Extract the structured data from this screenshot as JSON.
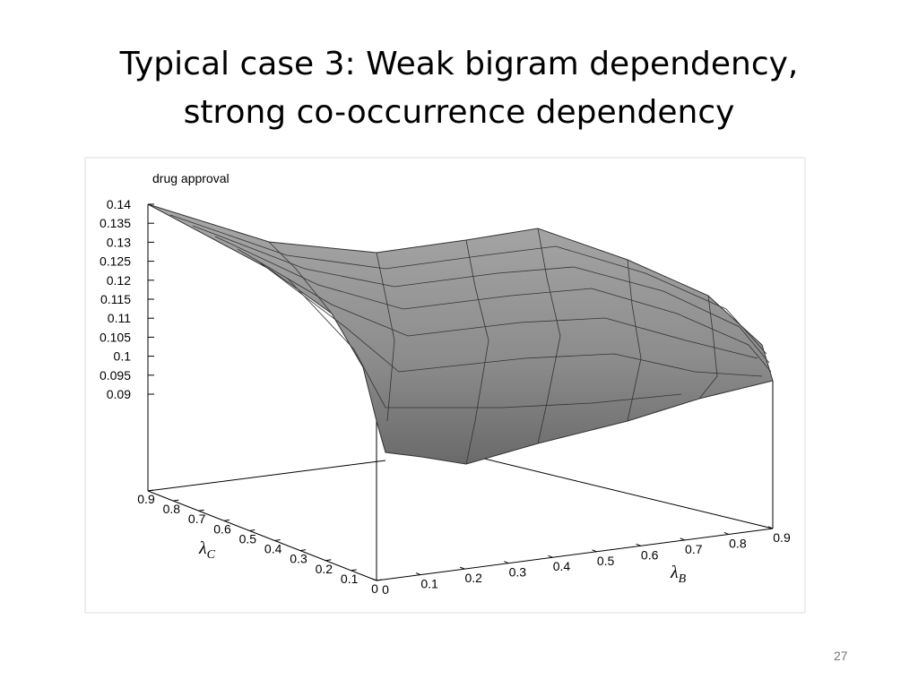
{
  "slide": {
    "title_lines": [
      "Typical case 3: Weak bigram dependency,",
      "strong co-occurrence dependency"
    ],
    "figure": {
      "label": "drug approval",
      "z_ticks": [
        "0.14",
        "0.135",
        "0.13",
        "0.125",
        "0.12",
        "0.115",
        "0.11",
        "0.105",
        "0.1",
        "0.095",
        "0.09"
      ],
      "x_ticks": [
        "0",
        "0.1",
        "0.2",
        "0.3",
        "0.4",
        "0.5",
        "0.6",
        "0.7",
        "0.8",
        "0.9"
      ],
      "x_axis_label": {
        "symbol": "λ",
        "subscript": "B"
      },
      "y_ticks": [
        "0.9",
        "0.8",
        "0.7",
        "0.6",
        "0.5",
        "0.4",
        "0.3",
        "0.2",
        "0.1",
        "0"
      ],
      "y_axis_label": {
        "symbol": "λ",
        "subscript": "C"
      }
    },
    "page_number": "27"
  }
}
